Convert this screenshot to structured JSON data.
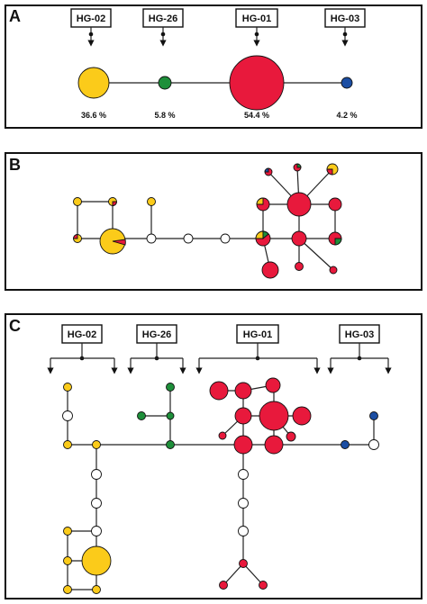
{
  "colors": {
    "yellow": "#fbcb1a",
    "green": "#1e8f3a",
    "red": "#e8193c",
    "blue": "#1b4ea3",
    "empty": "#ffffff",
    "line": "#222222"
  },
  "panels": [
    {
      "letter": "A",
      "haplogroups": [
        {
          "label": "HG-02",
          "percent": "36.6 %",
          "color": "yellow"
        },
        {
          "label": "HG-26",
          "percent": "5.8 %",
          "color": "green"
        },
        {
          "label": "HG-01",
          "percent": "54.4 %",
          "color": "red"
        },
        {
          "label": "HG-03",
          "percent": "4.2 %",
          "color": "blue"
        }
      ]
    },
    {
      "letter": "B"
    },
    {
      "letter": "C",
      "haplogroups": [
        {
          "label": "HG-02"
        },
        {
          "label": "HG-26"
        },
        {
          "label": "HG-01"
        },
        {
          "label": "HG-03"
        }
      ]
    }
  ]
}
